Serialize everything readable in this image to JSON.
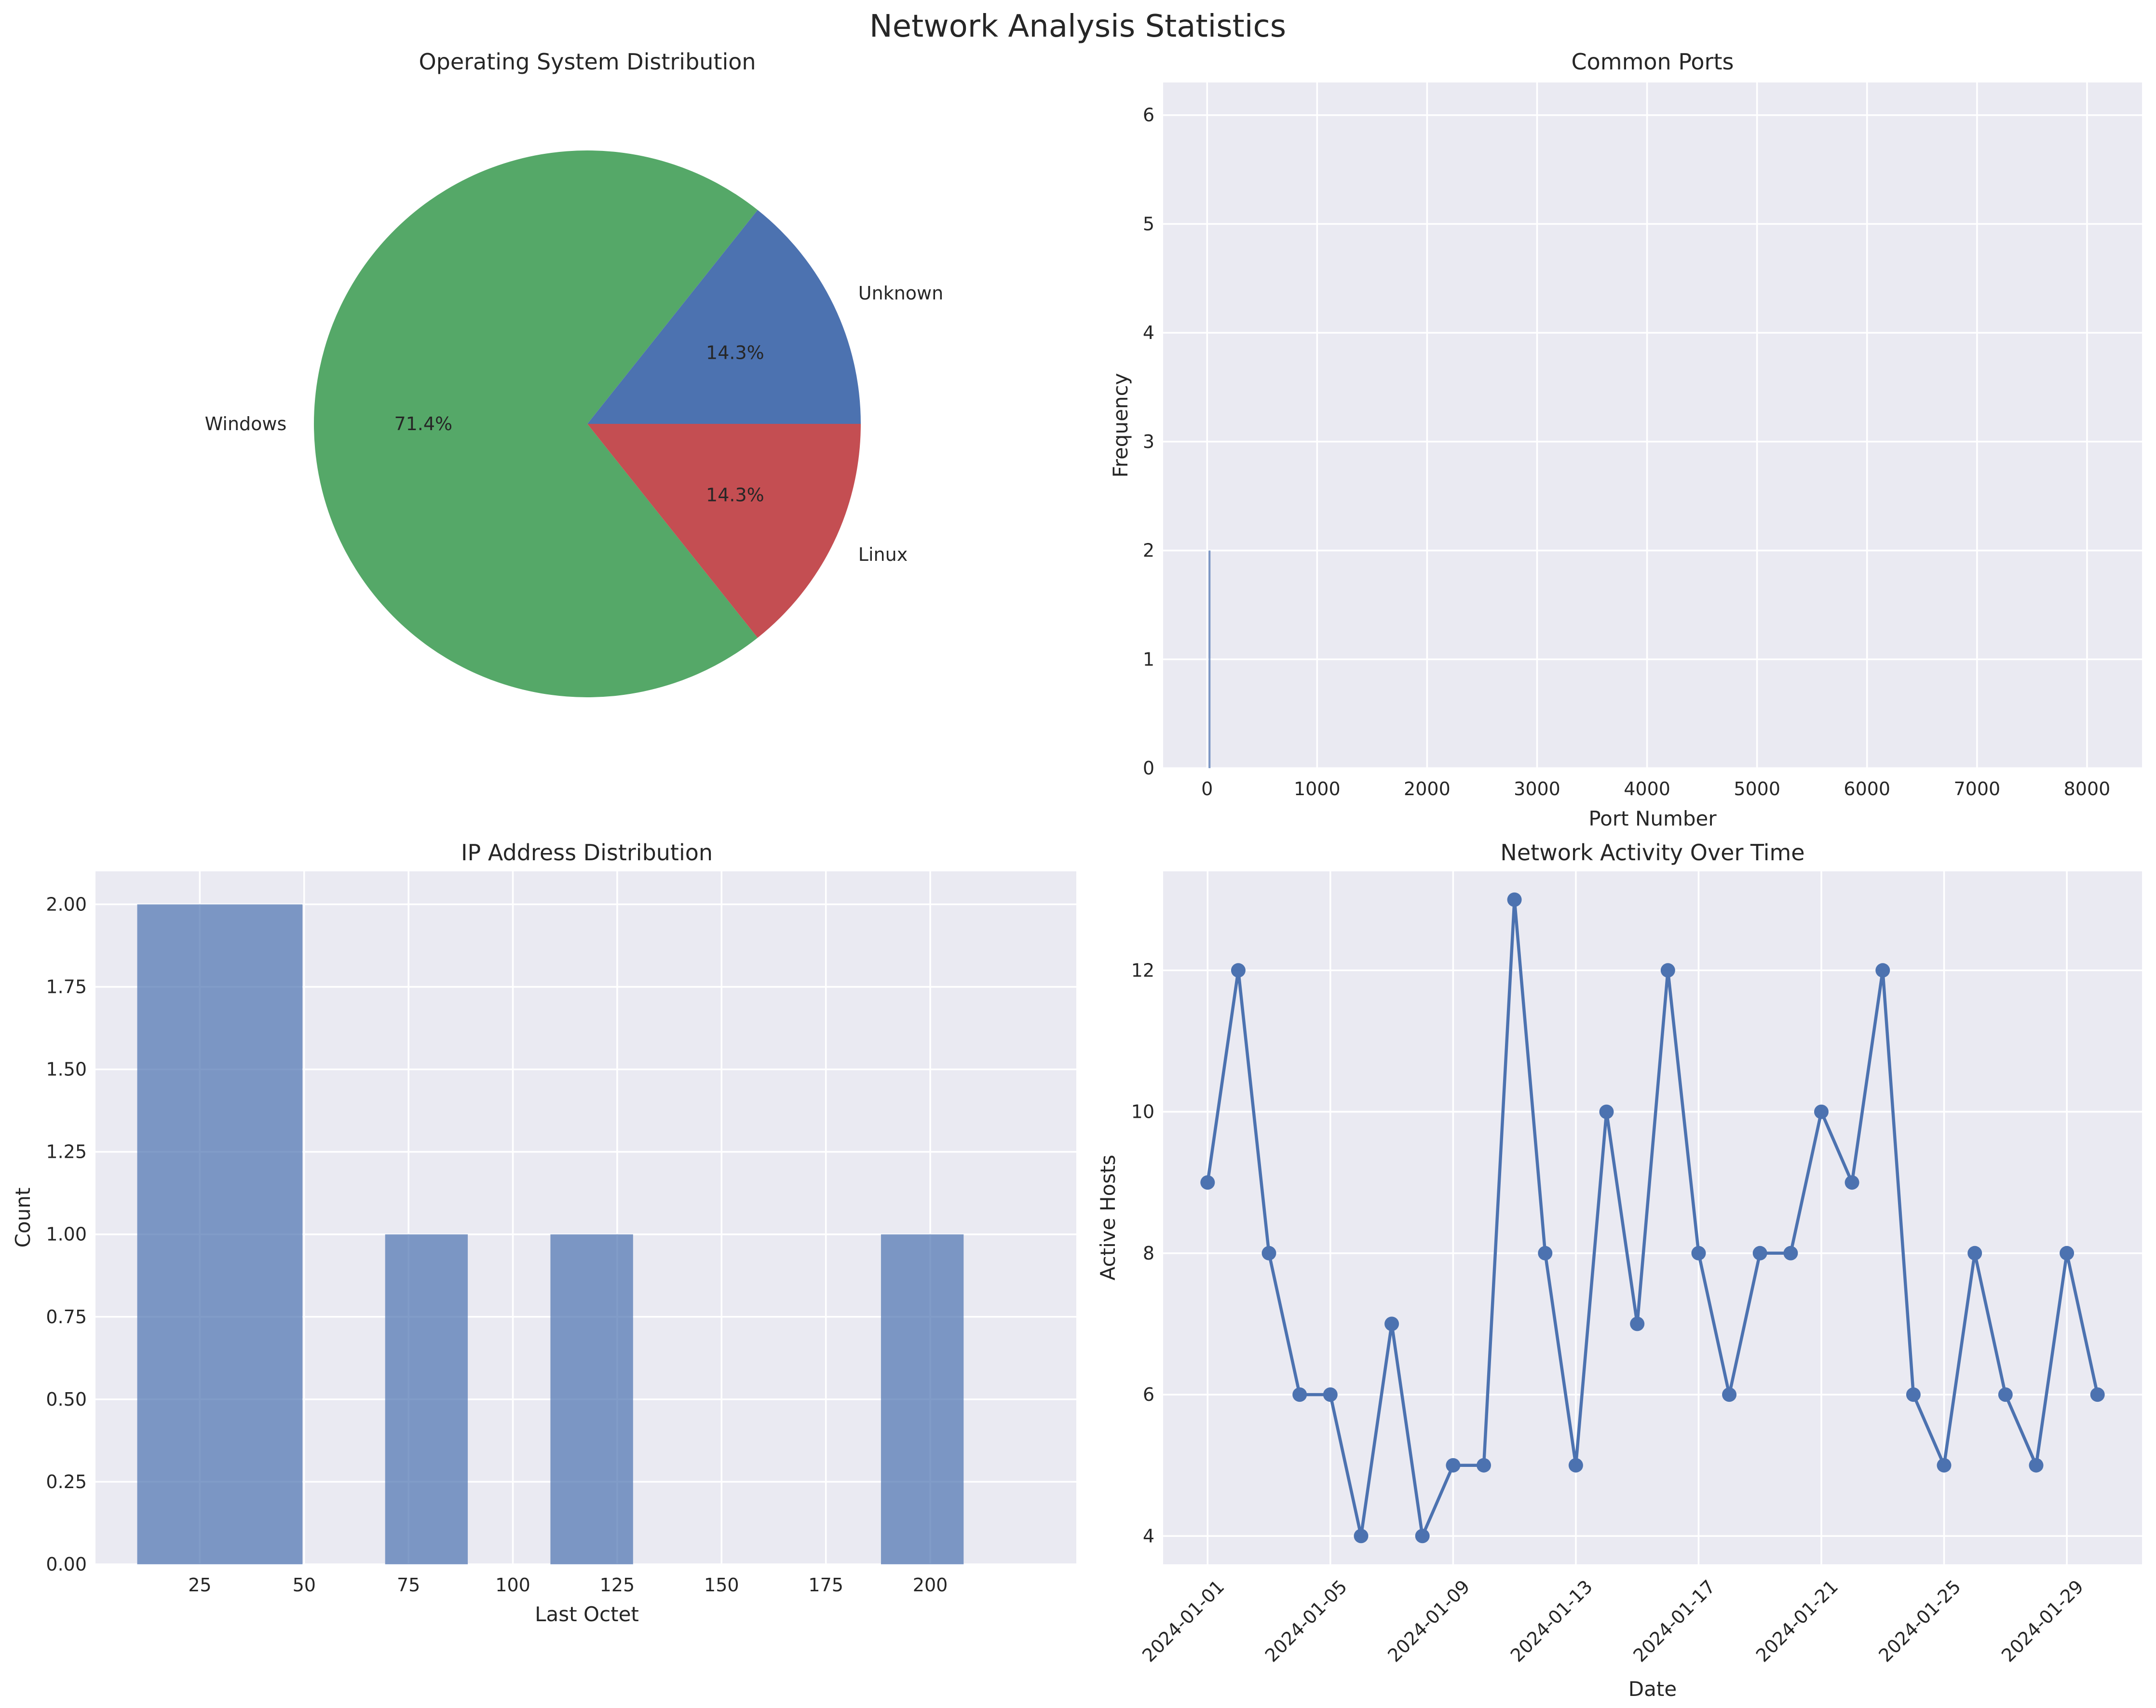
{
  "page_title": "Network Analysis Statistics",
  "chart_data": [
    {
      "type": "pie",
      "title": "Operating System Distribution",
      "labels": [
        "Unknown",
        "Windows",
        "Linux"
      ],
      "values": [
        14.3,
        71.4,
        14.3
      ],
      "pct_labels": [
        "14.3%",
        "71.4%",
        "14.3%"
      ],
      "colors": [
        "#4c72b0",
        "#55a868",
        "#c44e52"
      ]
    },
    {
      "type": "bar",
      "title": "Common Ports",
      "xlabel": "Port Number",
      "ylabel": "Frequency",
      "xlim": [
        -400,
        8500
      ],
      "ylim": [
        0,
        6.3
      ],
      "xticks": [
        0,
        1000,
        2000,
        3000,
        4000,
        5000,
        6000,
        7000,
        8000
      ],
      "yticks": [
        0,
        1,
        2,
        3,
        4,
        5,
        6
      ],
      "bars": [
        {
          "x": 22,
          "value": 2
        }
      ],
      "color": "#4c72b0"
    },
    {
      "type": "bar",
      "title": "IP Address Distribution",
      "xlabel": "Last Octet",
      "ylabel": "Count",
      "xlim": [
        0,
        235
      ],
      "ylim": [
        0,
        2.1
      ],
      "xticks": [
        25,
        50,
        75,
        100,
        125,
        150,
        175,
        200
      ],
      "yticks": [
        "0.00",
        "0.25",
        "0.50",
        "0.75",
        "1.00",
        "1.25",
        "1.50",
        "1.75",
        "2.00"
      ],
      "bins": [
        {
          "start": 10,
          "end": 49.6,
          "value": 2
        },
        {
          "start": 69.4,
          "end": 89.2,
          "value": 1
        },
        {
          "start": 109,
          "end": 128.8,
          "value": 1
        },
        {
          "start": 188.2,
          "end": 208,
          "value": 1
        }
      ],
      "color": "#4c72b0"
    },
    {
      "type": "line",
      "title": "Network Activity Over Time",
      "xlabel": "Date",
      "ylabel": "Active Hosts",
      "ylim": [
        3.6,
        13.4
      ],
      "yticks": [
        4,
        6,
        8,
        10,
        12
      ],
      "dates": [
        "2024-01-01",
        "2024-01-02",
        "2024-01-03",
        "2024-01-04",
        "2024-01-05",
        "2024-01-06",
        "2024-01-07",
        "2024-01-08",
        "2024-01-09",
        "2024-01-10",
        "2024-01-11",
        "2024-01-12",
        "2024-01-13",
        "2024-01-14",
        "2024-01-15",
        "2024-01-16",
        "2024-01-17",
        "2024-01-18",
        "2024-01-19",
        "2024-01-20",
        "2024-01-21",
        "2024-01-22",
        "2024-01-23",
        "2024-01-24",
        "2024-01-25",
        "2024-01-26",
        "2024-01-27",
        "2024-01-28",
        "2024-01-29",
        "2024-01-30"
      ],
      "values": [
        9,
        12,
        8,
        6,
        6,
        4,
        7,
        4,
        5,
        5,
        13,
        8,
        5,
        10,
        7,
        12,
        8,
        6,
        8,
        8,
        10,
        9,
        12,
        6,
        5,
        8,
        6,
        5,
        8,
        6
      ],
      "xtick_labels": [
        "2024-01-01",
        "2024-01-05",
        "2024-01-09",
        "2024-01-13",
        "2024-01-17",
        "2024-01-21",
        "2024-01-25",
        "2024-01-29"
      ],
      "color": "#4c72b0"
    }
  ]
}
